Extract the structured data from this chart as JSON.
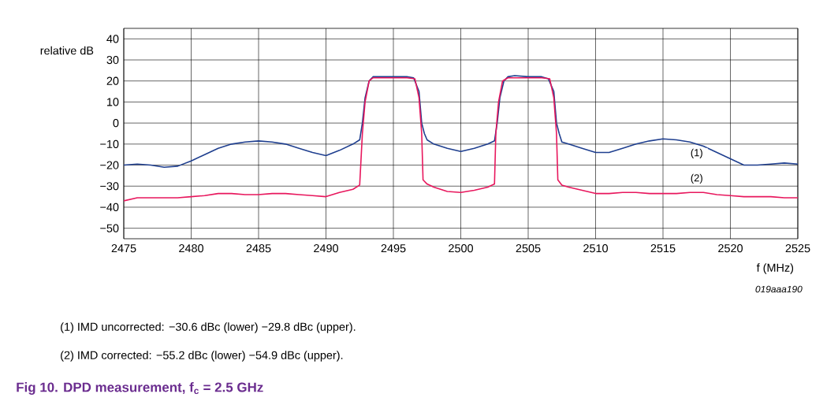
{
  "chart_data": {
    "type": "line",
    "title": "Fig 10.   DPD measurement, f$_{c}$ = 2.5 GHz",
    "xlabel": "f (MHz)",
    "ylabel": "relative dB",
    "annotations": [
      "019aaa190",
      "(1)   IMD uncorrected: −30.6 dBc (lower) −29.8 dBc (upper).",
      "(2)   IMD corrected: −55.2 dBc (lower) −54.9 dBc (upper)."
    ],
    "xlim": [
      2475,
      2525
    ],
    "ylim": [
      -55,
      45
    ],
    "xticks": [
      2475,
      2480,
      2485,
      2490,
      2495,
      2500,
      2505,
      2510,
      2515,
      2520,
      2525
    ],
    "yticks": [
      {
        "value": -50,
        "label": "−50"
      },
      {
        "value": -40,
        "label": "−40"
      },
      {
        "value": -30,
        "label": "−30"
      },
      {
        "value": -20,
        "label": "−20"
      },
      {
        "value": -10,
        "label": "−10"
      },
      0,
      10,
      20,
      30,
      40
    ],
    "grid": true,
    "marker": "none",
    "line_style": "solid",
    "series": [
      {
        "name": "(1)",
        "color": "#1f3f8f",
        "x": [
          2475,
          2476,
          2477,
          2478,
          2479,
          2480,
          2481,
          2482,
          2483,
          2484,
          2485,
          2486,
          2487,
          2488,
          2489,
          2490,
          2491,
          2492,
          2492.5,
          2492.7,
          2492.9,
          2493.2,
          2493.5,
          2494,
          2495,
          2496,
          2496.5,
          2496.9,
          2497.1,
          2497.3,
          2497.5,
          2498,
          2499,
          2500,
          2501,
          2502,
          2502.5,
          2502.7,
          2502.9,
          2503.2,
          2503.5,
          2504,
          2505,
          2506,
          2506.5,
          2506.9,
          2507.1,
          2507.3,
          2507.5,
          2508,
          2509,
          2510,
          2511,
          2512,
          2513,
          2514,
          2515,
          2516,
          2517,
          2518,
          2519,
          2520,
          2521,
          2522,
          2523,
          2524,
          2525
        ],
        "values": [
          -20,
          -19.5,
          -20,
          -21,
          -20.5,
          -18,
          -15,
          -12,
          -10,
          -9,
          -8.5,
          -9,
          -10,
          -12,
          -14,
          -15.5,
          -13,
          -10,
          -8,
          0,
          12,
          20,
          22,
          22,
          22,
          22,
          21.5,
          15,
          0,
          -5,
          -8,
          -10,
          -12,
          -13.5,
          -12,
          -10,
          -8.5,
          0,
          12,
          20,
          22,
          22.5,
          22,
          22,
          21,
          15,
          0,
          -5,
          -9,
          -10,
          -12,
          -14,
          -14,
          -12,
          -10,
          -8.5,
          -7.5,
          -8,
          -9,
          -11,
          -14,
          -17,
          -20,
          -20,
          -19.5,
          -19,
          -19.5
        ]
      },
      {
        "name": "(2)",
        "color": "#e8175d",
        "x": [
          2475,
          2476,
          2477,
          2478,
          2479,
          2480,
          2481,
          2482,
          2483,
          2484,
          2485,
          2486,
          2487,
          2488,
          2489,
          2490,
          2491,
          2492,
          2492.5,
          2492.7,
          2492.9,
          2493.2,
          2493.5,
          2494,
          2495,
          2496,
          2496.6,
          2496.9,
          2497.1,
          2497.2,
          2497.5,
          2498,
          2499,
          2500,
          2501,
          2502,
          2502.5,
          2502.6,
          2502.8,
          2503.1,
          2503.5,
          2504,
          2505,
          2506,
          2506.6,
          2506.9,
          2507.1,
          2507.2,
          2507.5,
          2508,
          2509,
          2510,
          2511,
          2512,
          2513,
          2514,
          2515,
          2516,
          2517,
          2518,
          2519,
          2520,
          2521,
          2522,
          2523,
          2524,
          2525
        ],
        "values": [
          -37,
          -35.5,
          -35.5,
          -35.5,
          -35.5,
          -35,
          -34.5,
          -33.5,
          -33.5,
          -34,
          -34,
          -33.5,
          -33.5,
          -34,
          -34.5,
          -35,
          -33,
          -31.5,
          -29.5,
          -5,
          10,
          20,
          21.5,
          21.5,
          21.5,
          21.5,
          21,
          12,
          -5,
          -27,
          -29,
          -30.5,
          -32.5,
          -33,
          -32,
          -30.5,
          -29,
          -5,
          10,
          20,
          21.5,
          21.5,
          21.5,
          21.5,
          21,
          12,
          -5,
          -27,
          -29.5,
          -30.5,
          -32,
          -33.5,
          -33.5,
          -33,
          -33,
          -33.5,
          -33.5,
          -33.5,
          -33,
          -33,
          -34,
          -34.5,
          -35,
          -35,
          -35,
          -35.5,
          -35.5
        ]
      }
    ]
  }
}
